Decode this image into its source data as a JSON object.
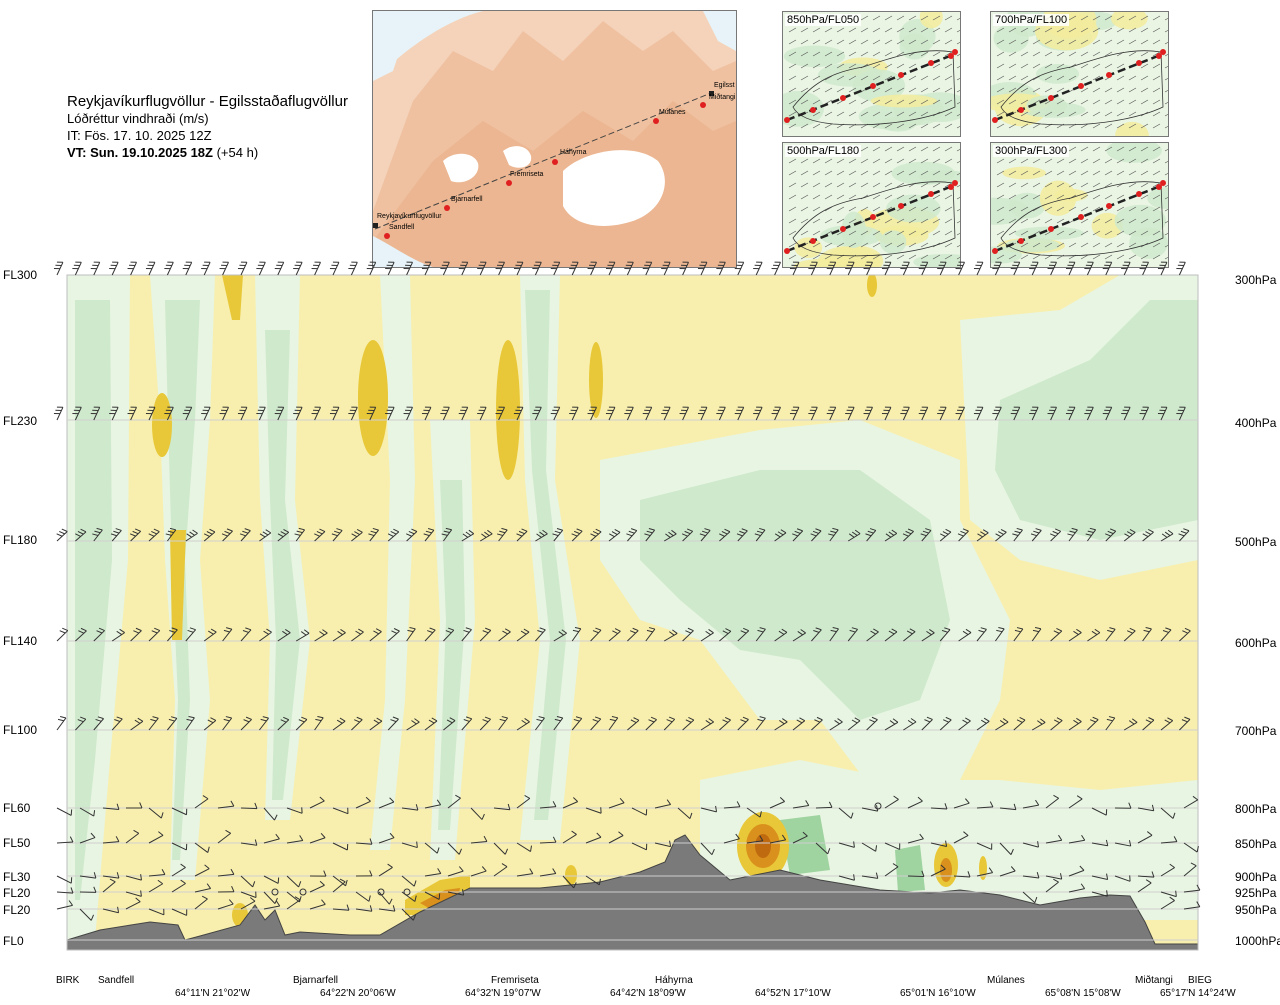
{
  "header": {
    "route": "Reykjavíkurflugvöllur - Egilsstaðaflugvöllur",
    "variable": "Lóðréttur vindhraði (m/s)",
    "issue_time": "IT: Fös. 17. 10. 2025 12Z",
    "valid_time": "VT: Sun. 19.10.2025 18Z",
    "lead_time": "(+54 h)"
  },
  "route_map": {
    "points": [
      {
        "name": "Reykjavíkurflugvöllur"
      },
      {
        "name": "Sandfell"
      },
      {
        "name": "Bjarnarfell"
      },
      {
        "name": "Fremriseta"
      },
      {
        "name": "Háhyrna"
      },
      {
        "name": "Múlanes"
      },
      {
        "name": "Miðtangi"
      },
      {
        "name": "Egilsst"
      }
    ]
  },
  "level_maps": [
    {
      "label": "850hPa/FL050"
    },
    {
      "label": "700hPa/FL100"
    },
    {
      "label": "500hPa/FL180"
    },
    {
      "label": "300hPa/FL300"
    }
  ],
  "colors": {
    "strong_up": "#d9901c",
    "moderate_up": "#e8c838",
    "weak_up": "#f6eeaa",
    "neutral": "#fbfbea",
    "weak_down": "#e8f5e2",
    "moderate_down": "#cfe9cc",
    "strong_down": "#9fd3a0",
    "terrain": "#7a7a7a"
  },
  "chart_data": {
    "type": "cross-section",
    "levels": [
      {
        "fl": "FL300",
        "hpa": "300hPa"
      },
      {
        "fl": "FL230",
        "hpa": "400hPa"
      },
      {
        "fl": "FL180",
        "hpa": "500hPa"
      },
      {
        "fl": "FL140",
        "hpa": "600hPa"
      },
      {
        "fl": "FL100",
        "hpa": "700hPa"
      },
      {
        "fl": "FL60",
        "hpa": "800hPa"
      },
      {
        "fl": "FL50",
        "hpa": "850hPa"
      },
      {
        "fl": "FL30",
        "hpa": "900hPa"
      },
      {
        "fl": "FL20",
        "hpa": "925hPa"
      },
      {
        "fl": "FL20",
        "hpa": "950hPa"
      },
      {
        "fl": "FL0",
        "hpa": "1000hPa"
      }
    ],
    "stations": [
      "BIRK",
      "Sandfell",
      "Bjarnarfell",
      "Fremriseta",
      "Háhyrna",
      "Múlanes",
      "Miðtangi",
      "BIEG"
    ],
    "coordinates": [
      "64°11'N 21°02'W",
      "64°22'N 20°06'W",
      "64°32'N 19°07'W",
      "64°42'N 18°09'W",
      "64°52'N 17°10'W",
      "65°01'N 16°10'W",
      "65°08'N 15°08'W",
      "65°17'N 14°24'W"
    ]
  }
}
